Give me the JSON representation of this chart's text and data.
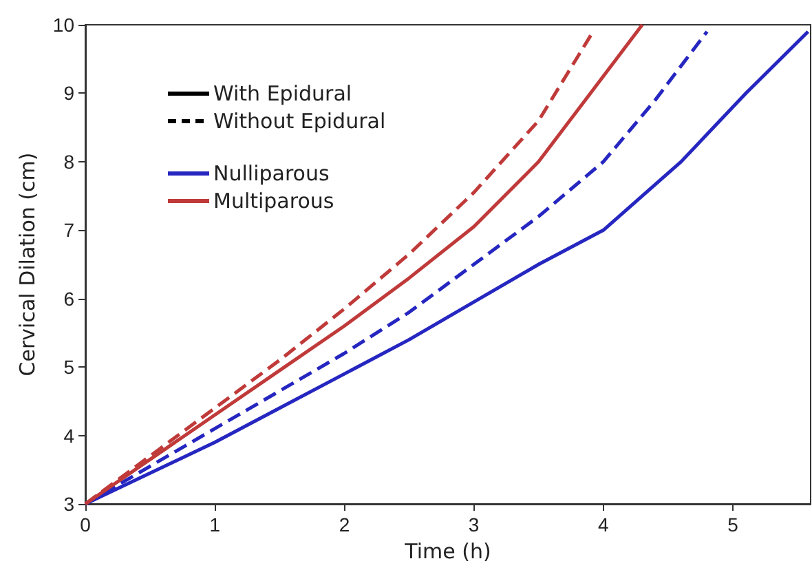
{
  "chart_data": {
    "type": "line",
    "xlabel": "Time (h)",
    "ylabel": "Cervical Dilation (cm)",
    "xlim": [
      0,
      5.6
    ],
    "xticks": [
      0,
      1,
      2,
      3,
      4,
      5
    ],
    "ylim": [
      3,
      10
    ],
    "yticks": [
      3,
      4,
      5,
      6,
      7,
      8,
      9,
      10
    ],
    "grid": false,
    "marker": "none",
    "annotations": [
      "With Epidural",
      "Without Epidural",
      "Nulliparous",
      "Multiparous"
    ],
    "series": [
      {
        "color": "#2626c0",
        "line_style": "solid",
        "x": [
          0,
          0.5,
          1,
          1.5,
          2,
          2.5,
          3,
          3.5,
          4,
          4.6,
          5.1,
          5.58
        ],
        "values": [
          3,
          3.45,
          3.9,
          4.4,
          4.9,
          5.4,
          5.95,
          6.5,
          7.0,
          8.0,
          9.0,
          9.9
        ]
      },
      {
        "color": "#2626c0",
        "line_style": "dashed",
        "x": [
          0,
          0.5,
          1,
          1.5,
          2,
          2.5,
          3,
          3.5,
          4,
          4.4,
          4.8
        ],
        "values": [
          3,
          3.55,
          4.1,
          4.65,
          5.2,
          5.8,
          6.5,
          7.2,
          8.0,
          8.9,
          9.9
        ]
      },
      {
        "color": "#c03a3a",
        "line_style": "solid",
        "x": [
          0,
          0.5,
          1,
          1.5,
          2,
          2.5,
          3,
          3.5,
          3.9,
          4.3
        ],
        "values": [
          3,
          3.65,
          4.3,
          4.95,
          5.6,
          6.3,
          7.05,
          8.0,
          9.0,
          10
        ]
      },
      {
        "color": "#c03a3a",
        "line_style": "dashed",
        "x": [
          0,
          0.5,
          1,
          1.5,
          2,
          2.5,
          3,
          3.5,
          3.92
        ],
        "values": [
          3,
          3.7,
          4.4,
          5.1,
          5.85,
          6.65,
          7.55,
          8.6,
          9.9
        ]
      }
    ]
  }
}
